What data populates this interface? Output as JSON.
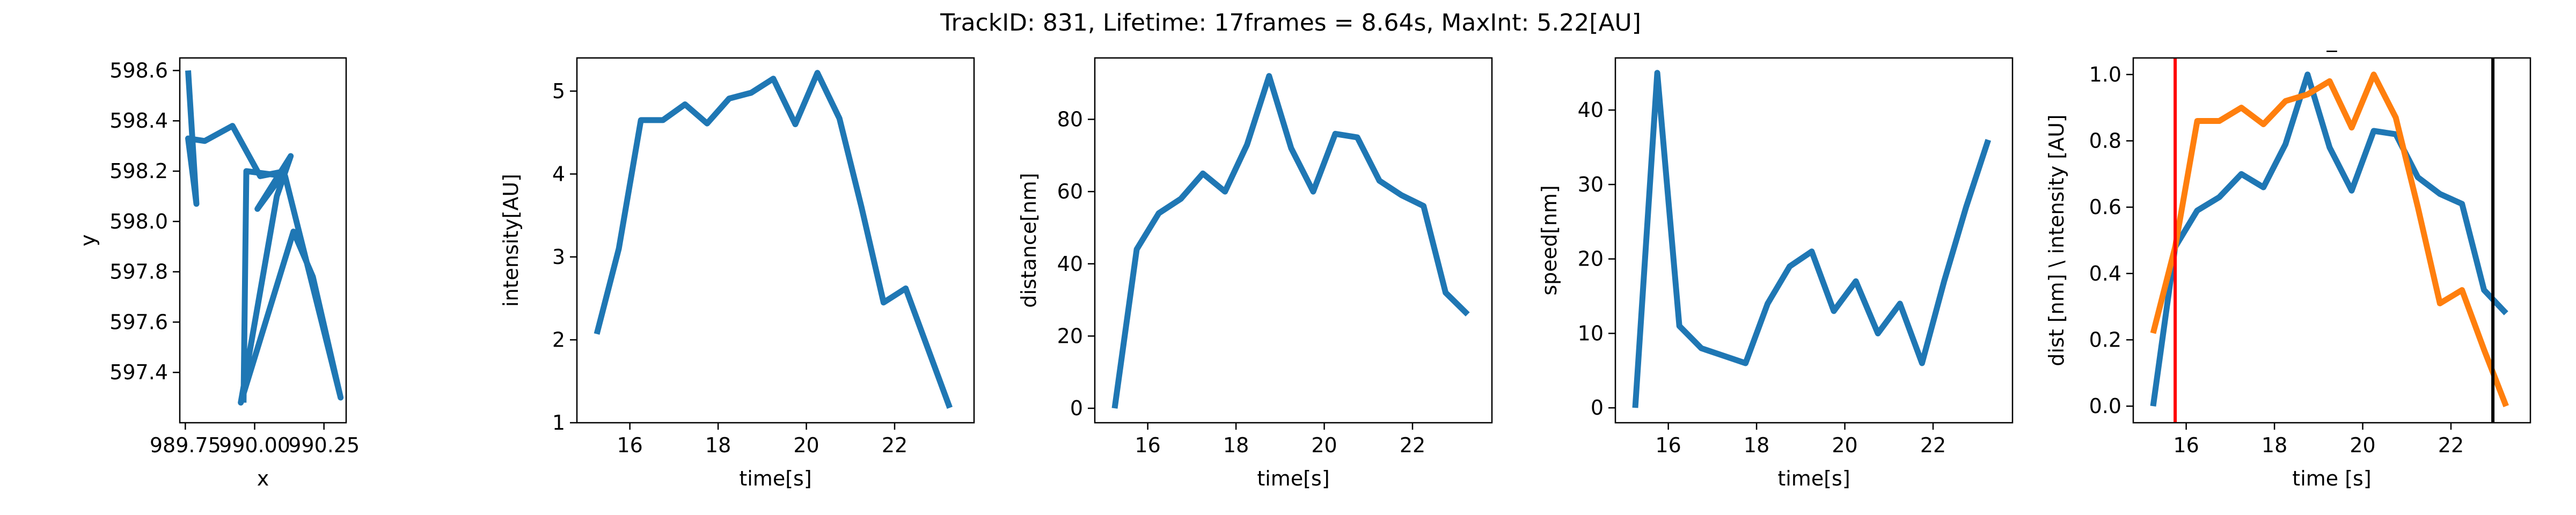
{
  "figure_title": "TrackID: 831, Lifetime: 17frames = 8.64s, MaxInt: 5.22[AU]",
  "colors": {
    "blue": "#1f77b4",
    "orange": "#ff7f0e",
    "red": "#ff0000",
    "black": "#000000"
  },
  "chart_data": [
    {
      "type": "line",
      "xlabel": "x",
      "ylabel": "y",
      "xlim": [
        989.73,
        990.33
      ],
      "ylim": [
        597.2,
        598.65
      ],
      "xticks": [
        989.75,
        990.0,
        990.25
      ],
      "xtick_labels": [
        "989.75",
        "990.00",
        "990.25"
      ],
      "yticks": [
        597.4,
        597.6,
        597.8,
        598.0,
        598.2,
        598.4,
        598.6
      ],
      "ytick_labels": [
        "597.4",
        "597.6",
        "597.8",
        "598.0",
        "598.2",
        "598.4",
        "598.6"
      ],
      "series": [
        {
          "color": "#1f77b4",
          "x": [
            989.76,
            989.79,
            989.76,
            989.82,
            989.92,
            990.02,
            990.11,
            990.01,
            990.13,
            990.08,
            989.95,
            990.14,
            990.21,
            990.31,
            990.11,
            989.97,
            989.96
          ],
          "y": [
            598.6,
            598.07,
            598.33,
            598.32,
            598.38,
            598.18,
            598.2,
            598.05,
            598.26,
            598.1,
            597.28,
            597.96,
            597.78,
            597.3,
            598.18,
            598.2,
            597.28
          ]
        }
      ]
    },
    {
      "type": "line",
      "xlabel": "time[s]",
      "ylabel": "intensity[AU]",
      "xlim": [
        14.8,
        23.8
      ],
      "ylim": [
        1,
        5.4
      ],
      "xticks": [
        16,
        18,
        20,
        22
      ],
      "xtick_labels": [
        "16",
        "18",
        "20",
        "22"
      ],
      "yticks": [
        1,
        2,
        3,
        4,
        5
      ],
      "ytick_labels": [
        "1",
        "2",
        "3",
        "4",
        "5"
      ],
      "series": [
        {
          "color": "#1f77b4",
          "x": [
            15.25,
            15.75,
            16.25,
            16.75,
            17.25,
            17.75,
            18.25,
            18.75,
            19.25,
            19.75,
            20.25,
            20.75,
            21.25,
            21.75,
            22.25,
            22.75,
            23.25
          ],
          "y": [
            2.07,
            3.1,
            4.65,
            4.65,
            4.84,
            4.61,
            4.91,
            4.98,
            5.15,
            4.6,
            5.22,
            4.67,
            3.6,
            2.45,
            2.62,
            1.9,
            1.18
          ]
        }
      ]
    },
    {
      "type": "line",
      "xlabel": "time[s]",
      "ylabel": "distance[nm]",
      "xlim": [
        14.8,
        23.8
      ],
      "ylim": [
        -4,
        97
      ],
      "xticks": [
        16,
        18,
        20,
        22
      ],
      "xtick_labels": [
        "16",
        "18",
        "20",
        "22"
      ],
      "yticks": [
        0,
        20,
        40,
        60,
        80
      ],
      "ytick_labels": [
        "0",
        "20",
        "40",
        "60",
        "80"
      ],
      "series": [
        {
          "color": "#1f77b4",
          "x": [
            15.25,
            15.75,
            16.25,
            16.75,
            17.25,
            17.75,
            18.25,
            18.75,
            19.25,
            19.75,
            20.25,
            20.75,
            21.25,
            21.75,
            22.25,
            22.75,
            23.25
          ],
          "y": [
            0,
            44,
            54,
            58,
            65,
            60,
            73,
            92,
            72,
            60,
            76,
            75,
            63,
            59,
            56,
            32,
            26
          ]
        }
      ]
    },
    {
      "type": "line",
      "xlabel": "time[s]",
      "ylabel": "speed[nm]",
      "xlim": [
        14.8,
        23.8
      ],
      "ylim": [
        -2,
        47
      ],
      "xticks": [
        16,
        18,
        20,
        22
      ],
      "xtick_labels": [
        "16",
        "18",
        "20",
        "22"
      ],
      "yticks": [
        0,
        10,
        20,
        30,
        40
      ],
      "ytick_labels": [
        "0",
        "10",
        "20",
        "30",
        "40"
      ],
      "series": [
        {
          "color": "#1f77b4",
          "x": [
            15.25,
            15.75,
            16.25,
            16.75,
            17.25,
            17.75,
            18.25,
            18.75,
            19.25,
            19.75,
            20.25,
            20.75,
            21.25,
            21.75,
            22.25,
            22.75,
            23.25
          ],
          "y": [
            0,
            45,
            11,
            8,
            7,
            6,
            14,
            19,
            21,
            13,
            17,
            10,
            14,
            6,
            17,
            27,
            36
          ]
        }
      ]
    },
    {
      "type": "line",
      "title": "_",
      "xlabel": "time [s]",
      "ylabel": "dist [nm] \\ intensity [AU]",
      "xlim": [
        14.8,
        23.8
      ],
      "ylim": [
        -0.05,
        1.05
      ],
      "xticks": [
        16,
        18,
        20,
        22
      ],
      "xtick_labels": [
        "16",
        "18",
        "20",
        "22"
      ],
      "yticks": [
        0.0,
        0.2,
        0.4,
        0.6,
        0.8,
        1.0
      ],
      "ytick_labels": [
        "0.0",
        "0.2",
        "0.4",
        "0.6",
        "0.8",
        "1.0"
      ],
      "series": [
        {
          "color": "#1f77b4",
          "x": [
            15.25,
            15.75,
            16.25,
            16.75,
            17.25,
            17.75,
            18.25,
            18.75,
            19.25,
            19.75,
            20.25,
            20.75,
            21.25,
            21.75,
            22.25,
            22.75,
            23.25
          ],
          "y": [
            0,
            0.48,
            0.59,
            0.63,
            0.7,
            0.66,
            0.79,
            1.0,
            0.78,
            0.65,
            0.83,
            0.82,
            0.69,
            0.64,
            0.61,
            0.35,
            0.28
          ]
        },
        {
          "color": "#ff7f0e",
          "x": [
            15.25,
            15.75,
            16.25,
            16.75,
            17.25,
            17.75,
            18.25,
            18.75,
            19.25,
            19.75,
            20.25,
            20.75,
            21.25,
            21.75,
            22.25,
            22.75,
            23.25
          ],
          "y": [
            0.22,
            0.48,
            0.86,
            0.86,
            0.9,
            0.85,
            0.92,
            0.94,
            0.98,
            0.84,
            1.0,
            0.87,
            0.6,
            0.31,
            0.35,
            0.17,
            0.0
          ]
        }
      ],
      "vlines": [
        {
          "x": 15.75,
          "color": "#ff0000"
        },
        {
          "x": 22.95,
          "color": "#000000"
        }
      ]
    }
  ]
}
